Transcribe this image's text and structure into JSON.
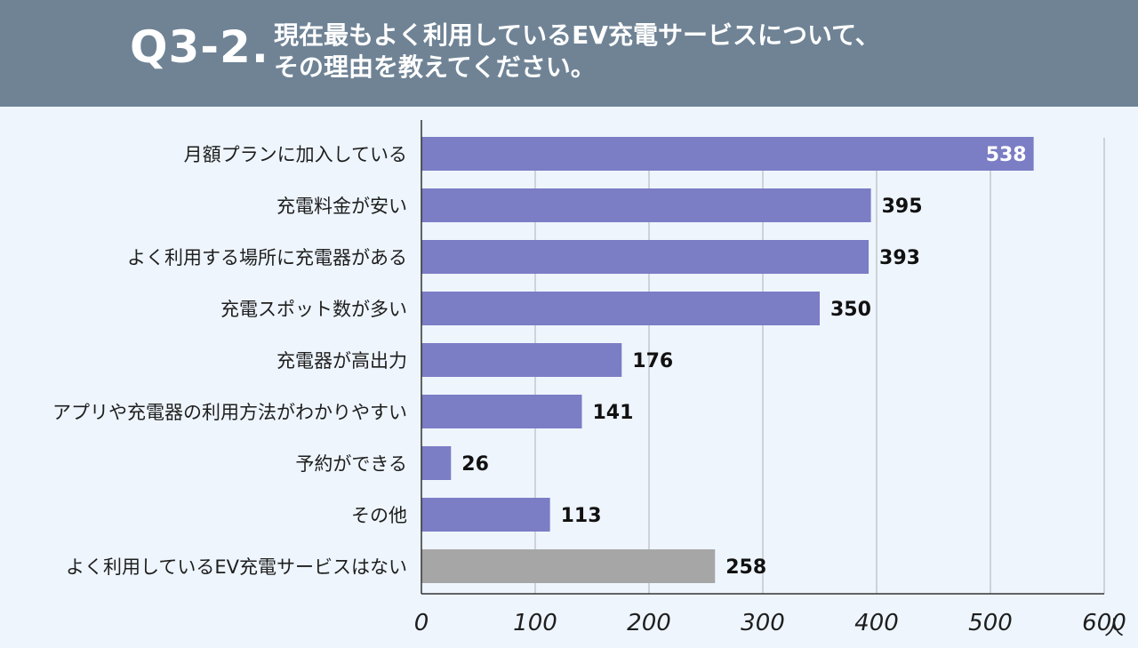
{
  "header": {
    "question_number": "Q3-2.",
    "question_line1": "現在最もよく利用しているEV充電サービスについて、",
    "question_line2": "その理由を教えてください。"
  },
  "chart_data": {
    "type": "bar",
    "orientation": "horizontal",
    "categories": [
      "月額プランに加入している",
      "充電料金が安い",
      "よく利用する場所に充電器がある",
      "充電スポット数が多い",
      "充電器が高出力",
      "アプリや充電器の利用方法がわかりやすい",
      "予約ができる",
      "その他",
      "よく利用しているEV充電サービスはない"
    ],
    "values": [
      538,
      395,
      393,
      350,
      176,
      141,
      26,
      113,
      258
    ],
    "bar_colors": [
      "#7b7dc5",
      "#7b7dc5",
      "#7b7dc5",
      "#7b7dc5",
      "#7b7dc5",
      "#7b7dc5",
      "#7b7dc5",
      "#7b7dc5",
      "#a6a6a6"
    ],
    "x_ticks": [
      "0",
      "100",
      "200",
      "300",
      "400",
      "500",
      "600"
    ],
    "xlim": [
      0,
      600
    ],
    "unit": "人",
    "grid": true
  }
}
